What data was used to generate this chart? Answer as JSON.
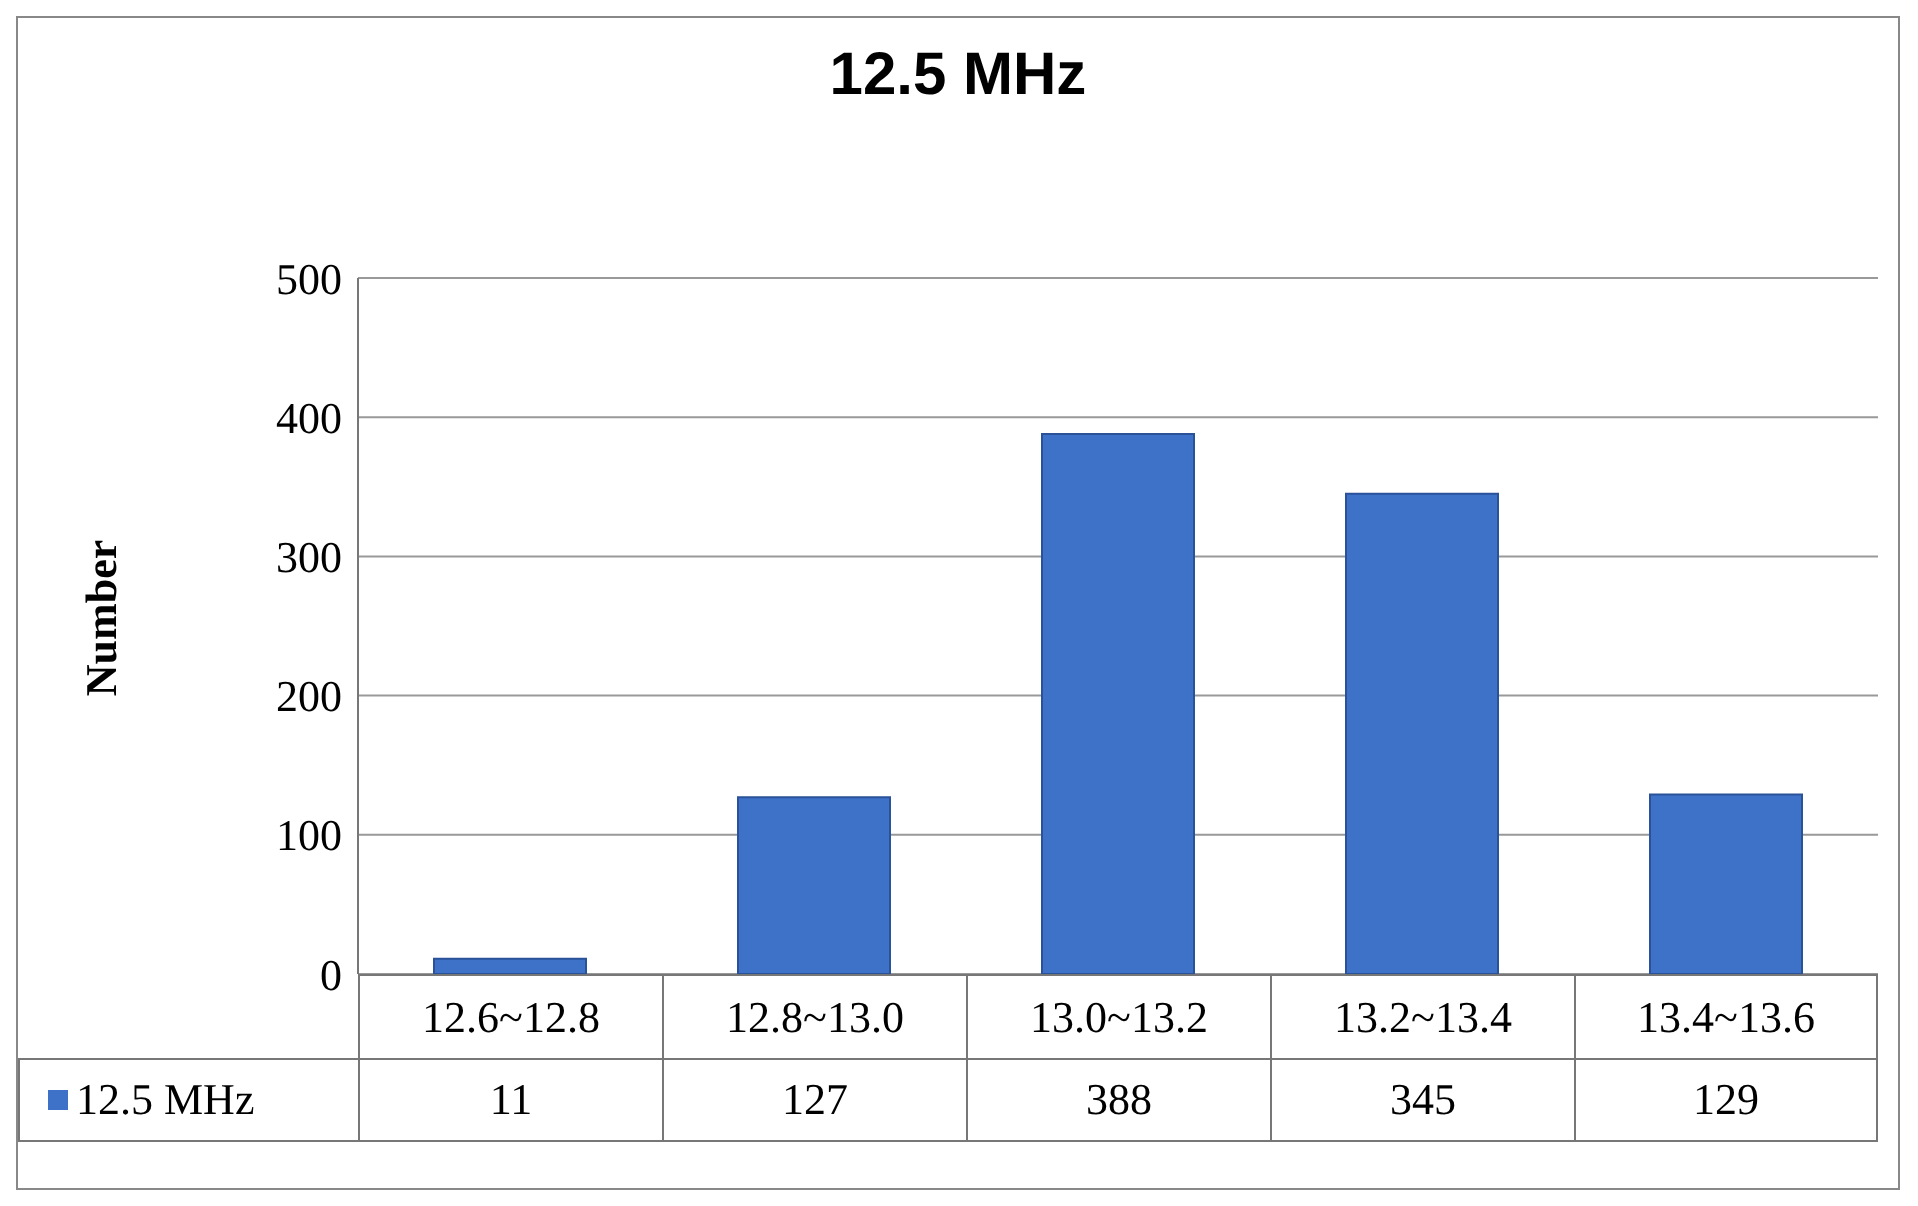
{
  "chart_data": {
    "type": "bar",
    "title": "12.5 MHz",
    "ylabel": "Number",
    "categories": [
      "12.6~12.8",
      "12.8~13.0",
      "13.0~13.2",
      "13.2~13.4",
      "13.4~13.6"
    ],
    "series": [
      {
        "name": "12.5 MHz",
        "color": "#3d72c8",
        "values": [
          11,
          127,
          388,
          345,
          129
        ]
      }
    ],
    "ylim": [
      0,
      500
    ],
    "yticks": [
      0,
      100,
      200,
      300,
      400,
      500
    ],
    "grid": "y",
    "legend": "bottom",
    "data_labels": true
  }
}
